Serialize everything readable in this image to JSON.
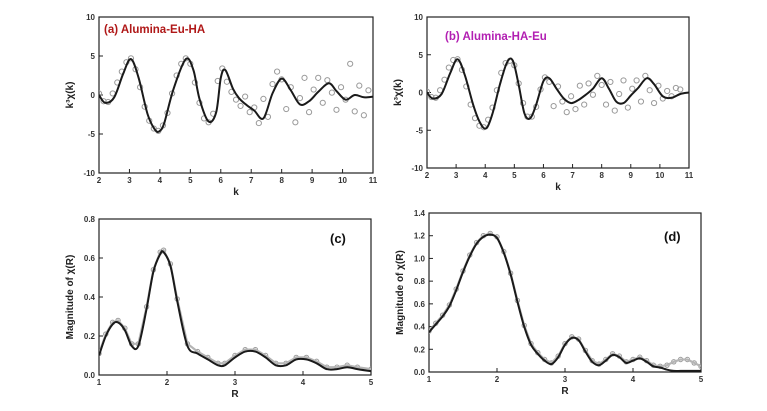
{
  "chart_data": [
    {
      "type": "line",
      "panel": "a",
      "title": "(a) Alumina-Eu-HA",
      "title_color": "#b01818",
      "tag": "",
      "xlabel": "k",
      "ylabel": "k³χ(k)",
      "xlim": [
        2,
        11
      ],
      "ylim": [
        -10,
        10
      ],
      "xticks": [
        "2",
        "3",
        "4",
        "5",
        "6",
        "7",
        "8",
        "9",
        "10",
        "11"
      ],
      "yticks": [
        "-10",
        "-5",
        "0",
        "5",
        "10"
      ],
      "series": [
        {
          "role": "fit",
          "x": [
            2.0,
            2.2,
            2.5,
            2.8,
            3.05,
            3.3,
            3.6,
            3.85,
            4.0,
            4.15,
            4.45,
            4.85,
            5.1,
            5.3,
            5.6,
            5.85,
            6.0,
            6.15,
            6.4,
            6.6,
            6.85,
            7.1,
            7.4,
            7.7,
            8.0,
            8.3,
            8.6,
            8.9,
            9.2,
            9.55,
            9.8,
            10.1,
            10.4,
            10.7,
            11.0
          ],
          "y": [
            0.0,
            -1.0,
            -0.3,
            2.8,
            4.6,
            2.2,
            -2.5,
            -4.5,
            -4.6,
            -3.5,
            0.8,
            4.6,
            3.2,
            -0.5,
            -3.4,
            -2.2,
            2.2,
            3.2,
            0.8,
            -0.4,
            -1.3,
            -2.0,
            -3.0,
            0.2,
            2.1,
            0.6,
            -1.2,
            -0.8,
            0.4,
            1.5,
            0.5,
            -0.6,
            0.0,
            -0.3,
            -0.2
          ]
        },
        {
          "role": "experimental",
          "x": [
            2.0,
            2.15,
            2.3,
            2.45,
            2.6,
            2.75,
            2.9,
            3.05,
            3.2,
            3.35,
            3.5,
            3.65,
            3.8,
            3.95,
            4.1,
            4.25,
            4.4,
            4.55,
            4.7,
            4.85,
            5.0,
            5.15,
            5.3,
            5.45,
            5.6,
            5.75,
            5.9,
            6.05,
            6.2,
            6.35,
            6.5,
            6.65,
            6.8,
            6.95,
            7.1,
            7.25,
            7.4,
            7.55,
            7.7,
            7.85,
            8.0,
            8.15,
            8.3,
            8.45,
            8.6,
            8.75,
            8.9,
            9.05,
            9.2,
            9.35,
            9.5,
            9.65,
            9.8,
            9.95,
            10.1,
            10.25,
            10.4,
            10.55,
            10.7,
            10.85
          ],
          "y": [
            0.2,
            -0.8,
            -0.9,
            0.2,
            1.6,
            3.0,
            4.2,
            4.7,
            3.3,
            1.0,
            -1.5,
            -3.3,
            -4.3,
            -4.6,
            -3.9,
            -2.3,
            0.2,
            2.5,
            4.0,
            4.7,
            4.0,
            1.6,
            -1.0,
            -3.0,
            -3.5,
            -2.4,
            1.8,
            3.4,
            1.7,
            0.4,
            -0.6,
            -1.4,
            -0.2,
            -2.2,
            -1.6,
            -3.6,
            -0.5,
            -2.8,
            1.4,
            3.0,
            2.0,
            -1.8,
            1.0,
            -3.5,
            -0.4,
            2.2,
            -2.2,
            0.7,
            2.2,
            -1.0,
            1.9,
            0.3,
            -1.9,
            1.0,
            -0.6,
            4.0,
            -2.1,
            1.2,
            -2.6,
            0.6
          ]
        }
      ]
    },
    {
      "type": "line",
      "panel": "b",
      "title": "(b) Alumina-HA-Eu",
      "title_color": "#b21fb2",
      "tag": "",
      "xlabel": "k",
      "ylabel": "k³χ(k)",
      "xlim": [
        2,
        11
      ],
      "ylim": [
        -10,
        10
      ],
      "xticks": [
        "2",
        "3",
        "4",
        "5",
        "6",
        "7",
        "8",
        "9",
        "10",
        "11"
      ],
      "yticks": [
        "-10",
        "-5",
        "0",
        "5",
        "10"
      ],
      "series": [
        {
          "role": "fit",
          "x": [
            2.0,
            2.2,
            2.5,
            2.8,
            3.05,
            3.3,
            3.6,
            3.85,
            4.05,
            4.25,
            4.5,
            4.75,
            4.95,
            5.15,
            5.35,
            5.55,
            5.75,
            6.0,
            6.2,
            6.45,
            6.7,
            6.95,
            7.2,
            7.45,
            7.7,
            8.0,
            8.25,
            8.5,
            8.75,
            9.0,
            9.25,
            9.55,
            9.8,
            10.1,
            10.4,
            10.7,
            11.0
          ],
          "y": [
            0.0,
            -0.8,
            -0.2,
            2.6,
            4.4,
            2.3,
            -1.8,
            -4.2,
            -4.7,
            -2.8,
            1.0,
            4.0,
            4.2,
            1.0,
            -2.8,
            -3.4,
            -1.6,
            1.5,
            1.9,
            0.5,
            -0.8,
            -1.4,
            -1.0,
            -0.3,
            0.5,
            1.9,
            0.5,
            -1.2,
            -1.4,
            -0.4,
            0.6,
            1.9,
            1.1,
            -0.5,
            -0.7,
            -0.2,
            0.0
          ]
        },
        {
          "role": "experimental",
          "x": [
            2.0,
            2.15,
            2.3,
            2.45,
            2.6,
            2.75,
            2.9,
            3.05,
            3.2,
            3.35,
            3.5,
            3.65,
            3.8,
            3.95,
            4.1,
            4.25,
            4.4,
            4.55,
            4.7,
            4.85,
            5.0,
            5.15,
            5.3,
            5.45,
            5.6,
            5.75,
            5.9,
            6.05,
            6.2,
            6.35,
            6.5,
            6.65,
            6.8,
            6.95,
            7.1,
            7.25,
            7.4,
            7.55,
            7.7,
            7.85,
            8.0,
            8.15,
            8.3,
            8.45,
            8.6,
            8.75,
            8.9,
            9.05,
            9.2,
            9.35,
            9.5,
            9.65,
            9.8,
            9.95,
            10.1,
            10.25,
            10.4,
            10.55,
            10.7
          ],
          "y": [
            0.1,
            -0.6,
            -0.7,
            0.3,
            1.7,
            3.3,
            4.3,
            4.4,
            3.0,
            0.8,
            -1.6,
            -3.4,
            -4.4,
            -4.6,
            -3.6,
            -2.0,
            0.3,
            2.6,
            3.9,
            4.2,
            3.6,
            1.2,
            -1.4,
            -3.2,
            -3.2,
            -1.9,
            0.4,
            2.0,
            1.4,
            -1.8,
            0.8,
            -1.2,
            -2.6,
            -0.5,
            -2.2,
            0.9,
            -1.6,
            1.2,
            -0.3,
            2.2,
            1.0,
            -1.6,
            1.4,
            -2.4,
            -0.2,
            1.6,
            -2.0,
            0.5,
            1.6,
            -1.2,
            2.2,
            0.3,
            -1.4,
            0.9,
            -0.8,
            0.2,
            -0.5,
            0.6,
            0.4
          ]
        }
      ]
    },
    {
      "type": "line",
      "panel": "c",
      "title": "",
      "tag": "(c)",
      "xlabel": "R",
      "ylabel": "Magnitude of χ(R)",
      "xlim": [
        1,
        5
      ],
      "ylim": [
        0.0,
        0.8
      ],
      "xticks": [
        "1",
        "2",
        "3",
        "4",
        "5"
      ],
      "yticks": [
        "0.0",
        "0.2",
        "0.4",
        "0.6",
        "0.8"
      ],
      "series": [
        {
          "role": "fit",
          "x": [
            1.0,
            1.1,
            1.2,
            1.28,
            1.38,
            1.48,
            1.58,
            1.7,
            1.8,
            1.9,
            1.95,
            2.05,
            2.15,
            2.3,
            2.45,
            2.6,
            2.75,
            2.85,
            3.0,
            3.15,
            3.3,
            3.45,
            3.6,
            3.75,
            3.9,
            4.05,
            4.2,
            4.35,
            4.5,
            4.65,
            4.8,
            5.0
          ],
          "y": [
            0.1,
            0.2,
            0.26,
            0.27,
            0.23,
            0.15,
            0.15,
            0.34,
            0.53,
            0.62,
            0.63,
            0.56,
            0.38,
            0.15,
            0.11,
            0.08,
            0.05,
            0.05,
            0.09,
            0.12,
            0.12,
            0.09,
            0.05,
            0.05,
            0.08,
            0.08,
            0.06,
            0.03,
            0.03,
            0.04,
            0.03,
            0.02
          ]
        },
        {
          "role": "experimental",
          "x": [
            1.0,
            1.1,
            1.2,
            1.28,
            1.38,
            1.48,
            1.58,
            1.7,
            1.8,
            1.9,
            1.95,
            2.05,
            2.15,
            2.3,
            2.45,
            2.6,
            2.75,
            2.85,
            3.0,
            3.15,
            3.3,
            3.45,
            3.6,
            3.75,
            3.9,
            4.05,
            4.2,
            4.35,
            4.5,
            4.65,
            4.8,
            5.0
          ],
          "y": [
            0.11,
            0.21,
            0.27,
            0.28,
            0.24,
            0.16,
            0.16,
            0.35,
            0.54,
            0.63,
            0.64,
            0.57,
            0.39,
            0.16,
            0.12,
            0.09,
            0.06,
            0.06,
            0.1,
            0.13,
            0.13,
            0.1,
            0.06,
            0.06,
            0.09,
            0.09,
            0.07,
            0.04,
            0.04,
            0.05,
            0.04,
            0.03
          ]
        }
      ]
    },
    {
      "type": "line",
      "panel": "d",
      "title": "",
      "tag": "(d)",
      "xlabel": "R",
      "ylabel": "Magnitude of χ(R)",
      "xlim": [
        1,
        5
      ],
      "ylim": [
        0.0,
        1.4
      ],
      "xticks": [
        "1",
        "2",
        "3",
        "4",
        "5"
      ],
      "yticks": [
        "0.0",
        "0.2",
        "0.4",
        "0.6",
        "0.8",
        "1.0",
        "1.2",
        "1.4"
      ],
      "series": [
        {
          "role": "fit",
          "x": [
            1.0,
            1.1,
            1.2,
            1.3,
            1.4,
            1.5,
            1.6,
            1.7,
            1.8,
            1.9,
            2.0,
            2.1,
            2.2,
            2.3,
            2.4,
            2.5,
            2.6,
            2.7,
            2.8,
            2.9,
            3.0,
            3.1,
            3.2,
            3.3,
            3.4,
            3.5,
            3.6,
            3.7,
            3.8,
            3.9,
            4.0,
            4.1,
            4.2,
            4.3,
            4.4,
            4.5,
            4.6,
            4.7,
            4.8,
            4.9,
            5.0
          ],
          "y": [
            0.35,
            0.42,
            0.49,
            0.58,
            0.72,
            0.88,
            1.02,
            1.13,
            1.19,
            1.21,
            1.18,
            1.05,
            0.86,
            0.62,
            0.4,
            0.24,
            0.16,
            0.1,
            0.07,
            0.13,
            0.24,
            0.3,
            0.28,
            0.18,
            0.09,
            0.06,
            0.1,
            0.15,
            0.13,
            0.08,
            0.1,
            0.12,
            0.09,
            0.05,
            0.04,
            0.02,
            0.01,
            0.01,
            0.01,
            0.01,
            0.01
          ]
        },
        {
          "role": "experimental",
          "x": [
            1.0,
            1.1,
            1.2,
            1.3,
            1.4,
            1.5,
            1.6,
            1.7,
            1.8,
            1.9,
            2.0,
            2.1,
            2.2,
            2.3,
            2.4,
            2.5,
            2.6,
            2.7,
            2.8,
            2.9,
            3.0,
            3.1,
            3.2,
            3.3,
            3.4,
            3.5,
            3.6,
            3.7,
            3.8,
            3.9,
            4.0,
            4.1,
            4.2,
            4.3,
            4.4,
            4.5,
            4.6,
            4.7,
            4.8,
            4.9,
            5.0
          ],
          "y": [
            0.36,
            0.43,
            0.5,
            0.59,
            0.73,
            0.89,
            1.03,
            1.14,
            1.2,
            1.22,
            1.19,
            1.06,
            0.87,
            0.63,
            0.41,
            0.25,
            0.17,
            0.11,
            0.08,
            0.14,
            0.25,
            0.31,
            0.29,
            0.19,
            0.1,
            0.07,
            0.11,
            0.16,
            0.14,
            0.09,
            0.11,
            0.13,
            0.1,
            0.06,
            0.05,
            0.06,
            0.09,
            0.11,
            0.11,
            0.08,
            0.05
          ]
        }
      ]
    }
  ]
}
